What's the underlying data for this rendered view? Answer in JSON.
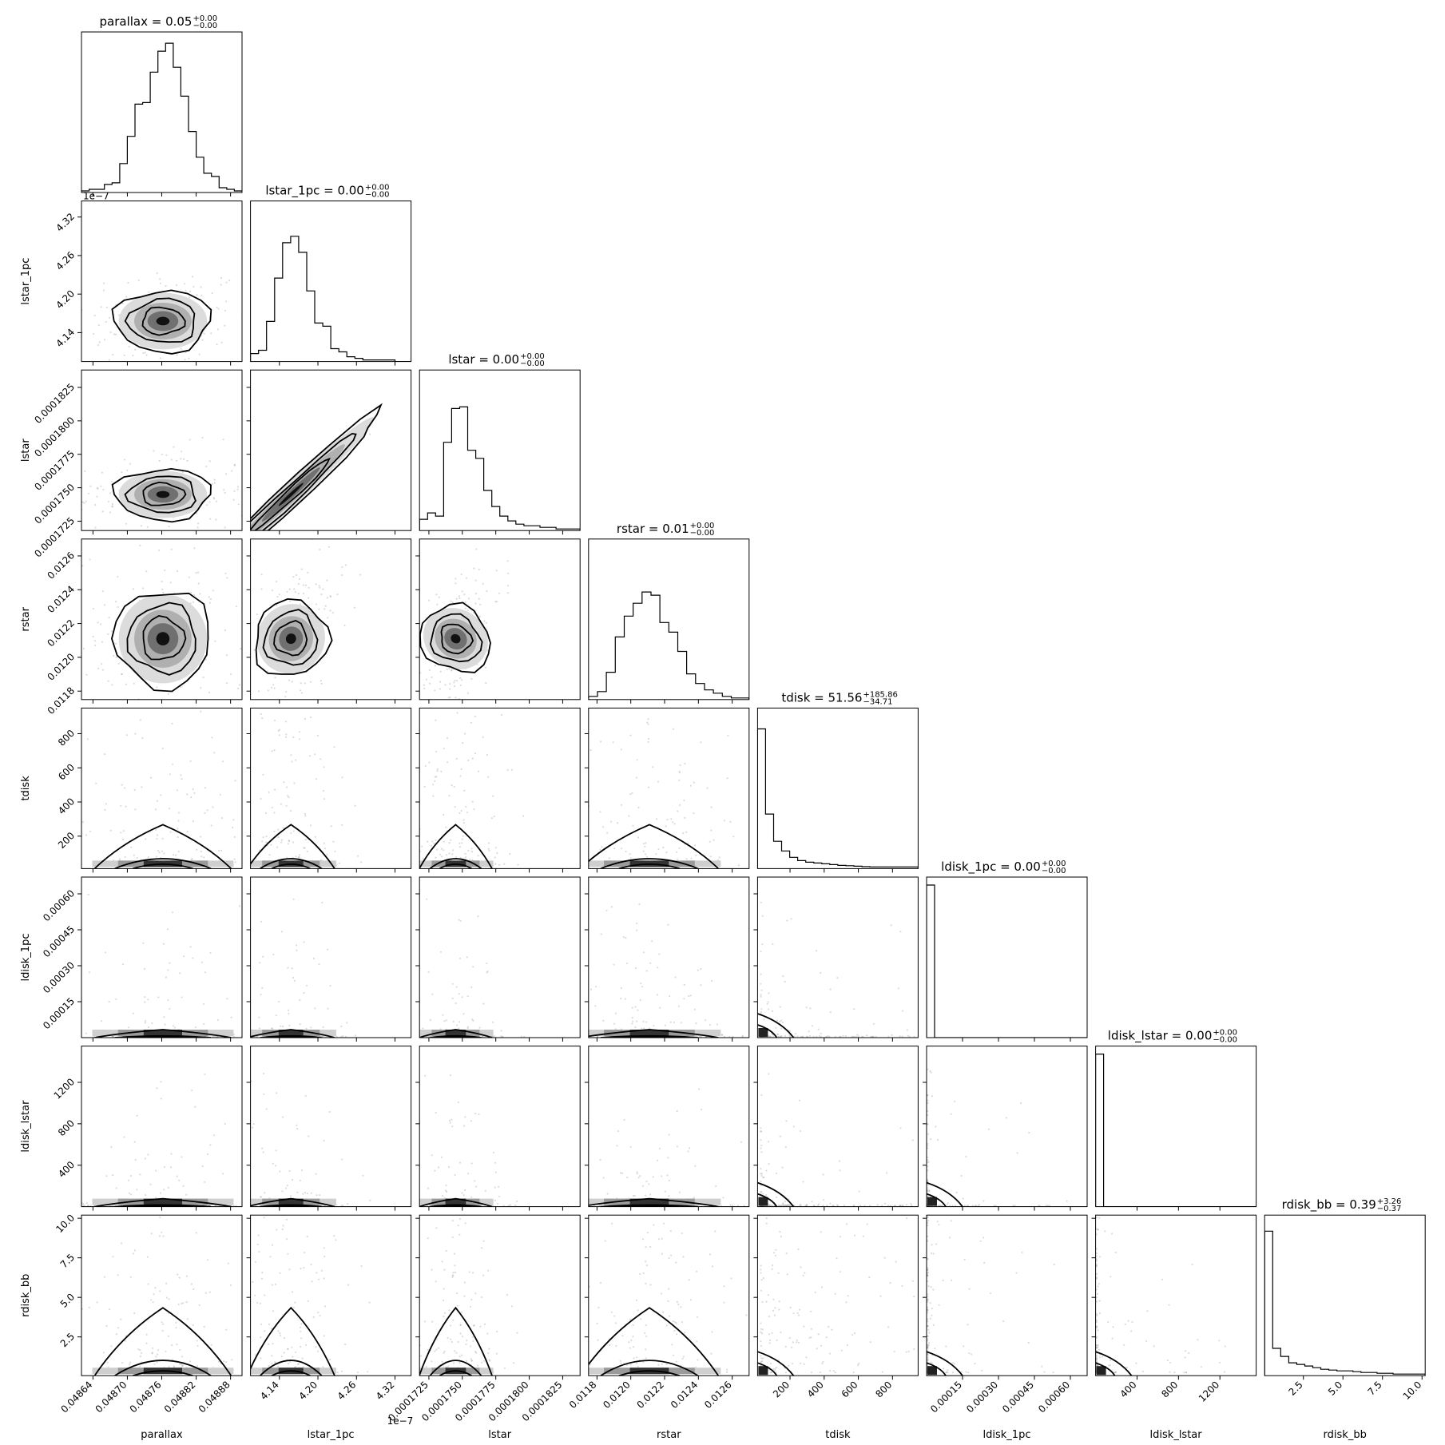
{
  "chart_data": {
    "type": "corner",
    "parameters": [
      {
        "name": "parallax",
        "title_value": "0.05",
        "plus": "+0.00",
        "minus": "−0.00",
        "range": [
          0.04862,
          0.0489
        ],
        "center": 0.048762,
        "sigma": 3.5e-05,
        "ticks": [
          0.04864,
          0.0487,
          0.04876,
          0.04882,
          0.04888
        ],
        "tick_labels": [
          "0.04864",
          "0.04870",
          "0.04876",
          "0.04882",
          "0.04888"
        ],
        "offset": ""
      },
      {
        "name": "lstar_1pc",
        "title_value": "0.00",
        "plus": "+0.00",
        "minus": "−0.00",
        "range": [
          4.095,
          4.345
        ],
        "center": 4.158,
        "sigma": 0.02,
        "ticks": [
          4.14,
          4.2,
          4.26,
          4.32
        ],
        "tick_labels": [
          "4.14",
          "4.20",
          "4.26",
          "4.32"
        ],
        "offset": "1e−7"
      },
      {
        "name": "lstar",
        "title_value": "0.00",
        "plus": "+0.00",
        "minus": "−0.00",
        "range": [
          0.0001718,
          0.0001838
        ],
        "center": 0.0001745,
        "sigma": 8e-07,
        "ticks": [
          0.0001725,
          0.000175,
          0.0001775,
          0.00018,
          0.0001825
        ],
        "tick_labels": [
          "0.0001725",
          "0.0001750",
          "0.0001775",
          "0.0001800",
          "0.0001825"
        ],
        "offset": ""
      },
      {
        "name": "rstar",
        "title_value": "0.01",
        "plus": "+0.00",
        "minus": "−0.00",
        "range": [
          0.01175,
          0.0127
        ],
        "center": 0.01211,
        "sigma": 0.00012,
        "ticks": [
          0.0118,
          0.012,
          0.0122,
          0.0124,
          0.0126
        ],
        "tick_labels": [
          "0.0118",
          "0.0120",
          "0.0122",
          "0.0124",
          "0.0126"
        ],
        "offset": ""
      },
      {
        "name": "tdisk",
        "title_value": "51.56",
        "plus": "+185.86",
        "minus": "−34.71",
        "range": [
          10,
          950
        ],
        "center": 52,
        "sigma": 0,
        "ticks": [
          200,
          400,
          600,
          800
        ],
        "tick_labels": [
          "200",
          "400",
          "600",
          "800"
        ],
        "offset": ""
      },
      {
        "name": "ldisk_1pc",
        "title_value": "0.00",
        "plus": "+0.00",
        "minus": "−0.00",
        "range": [
          0,
          0.00067
        ],
        "center": 5e-06,
        "sigma": 0,
        "ticks": [
          0.00015,
          0.0003,
          0.00045,
          0.0006
        ],
        "tick_labels": [
          "0.00015",
          "0.00030",
          "0.00045",
          "0.00060"
        ],
        "offset": ""
      },
      {
        "name": "ldisk_lstar",
        "title_value": "0.00",
        "plus": "+0.00",
        "minus": "−0.00",
        "range": [
          0,
          1550
        ],
        "center": 10,
        "sigma": 0,
        "ticks": [
          400,
          800,
          1200
        ],
        "tick_labels": [
          "400",
          "800",
          "1200"
        ],
        "offset": ""
      },
      {
        "name": "rdisk_bb",
        "title_value": "0.39",
        "plus": "+3.26",
        "minus": "−0.37",
        "range": [
          0.05,
          10.2
        ],
        "center": 0.39,
        "sigma": 0,
        "ticks": [
          2.5,
          5.0,
          7.5,
          10.0
        ],
        "tick_labels": [
          "2.5",
          "5.0",
          "7.5",
          "10.0"
        ],
        "offset": ""
      }
    ],
    "diag_histograms": [
      [
        0.01,
        0.02,
        0.02,
        0.05,
        0.06,
        0.18,
        0.35,
        0.55,
        0.56,
        0.75,
        0.88,
        0.93,
        0.78,
        0.6,
        0.38,
        0.22,
        0.12,
        0.1,
        0.03,
        0.02,
        0.01
      ],
      [
        0.05,
        0.07,
        0.25,
        0.52,
        0.74,
        0.78,
        0.68,
        0.44,
        0.24,
        0.22,
        0.08,
        0.06,
        0.03,
        0.02,
        0.01,
        0.01,
        0.01,
        0.01,
        0.0,
        0.0
      ],
      [
        0.07,
        0.11,
        0.09,
        0.55,
        0.76,
        0.77,
        0.5,
        0.45,
        0.25,
        0.15,
        0.09,
        0.06,
        0.04,
        0.03,
        0.03,
        0.02,
        0.02,
        0.01,
        0.01,
        0.01
      ],
      [
        0.02,
        0.05,
        0.17,
        0.39,
        0.52,
        0.6,
        0.67,
        0.65,
        0.48,
        0.42,
        0.3,
        0.16,
        0.1,
        0.06,
        0.04,
        0.02,
        0.01,
        0.01
      ],
      [
        0.87,
        0.34,
        0.17,
        0.11,
        0.07,
        0.05,
        0.04,
        0.035,
        0.03,
        0.025,
        0.02,
        0.018,
        0.015,
        0.012,
        0.01,
        0.01,
        0.01,
        0.01,
        0.01,
        0.01
      ],
      [
        0.95,
        0,
        0,
        0,
        0,
        0,
        0,
        0,
        0,
        0,
        0,
        0,
        0,
        0,
        0,
        0,
        0,
        0,
        0,
        0
      ],
      [
        0.95,
        0,
        0,
        0,
        0,
        0,
        0,
        0,
        0,
        0,
        0,
        0,
        0,
        0,
        0,
        0,
        0,
        0,
        0,
        0
      ],
      [
        0.9,
        0.17,
        0.12,
        0.08,
        0.07,
        0.06,
        0.05,
        0.04,
        0.035,
        0.03,
        0.03,
        0.025,
        0.02,
        0.02,
        0.015,
        0.015,
        0.01,
        0.01,
        0.01,
        0.01
      ]
    ]
  }
}
